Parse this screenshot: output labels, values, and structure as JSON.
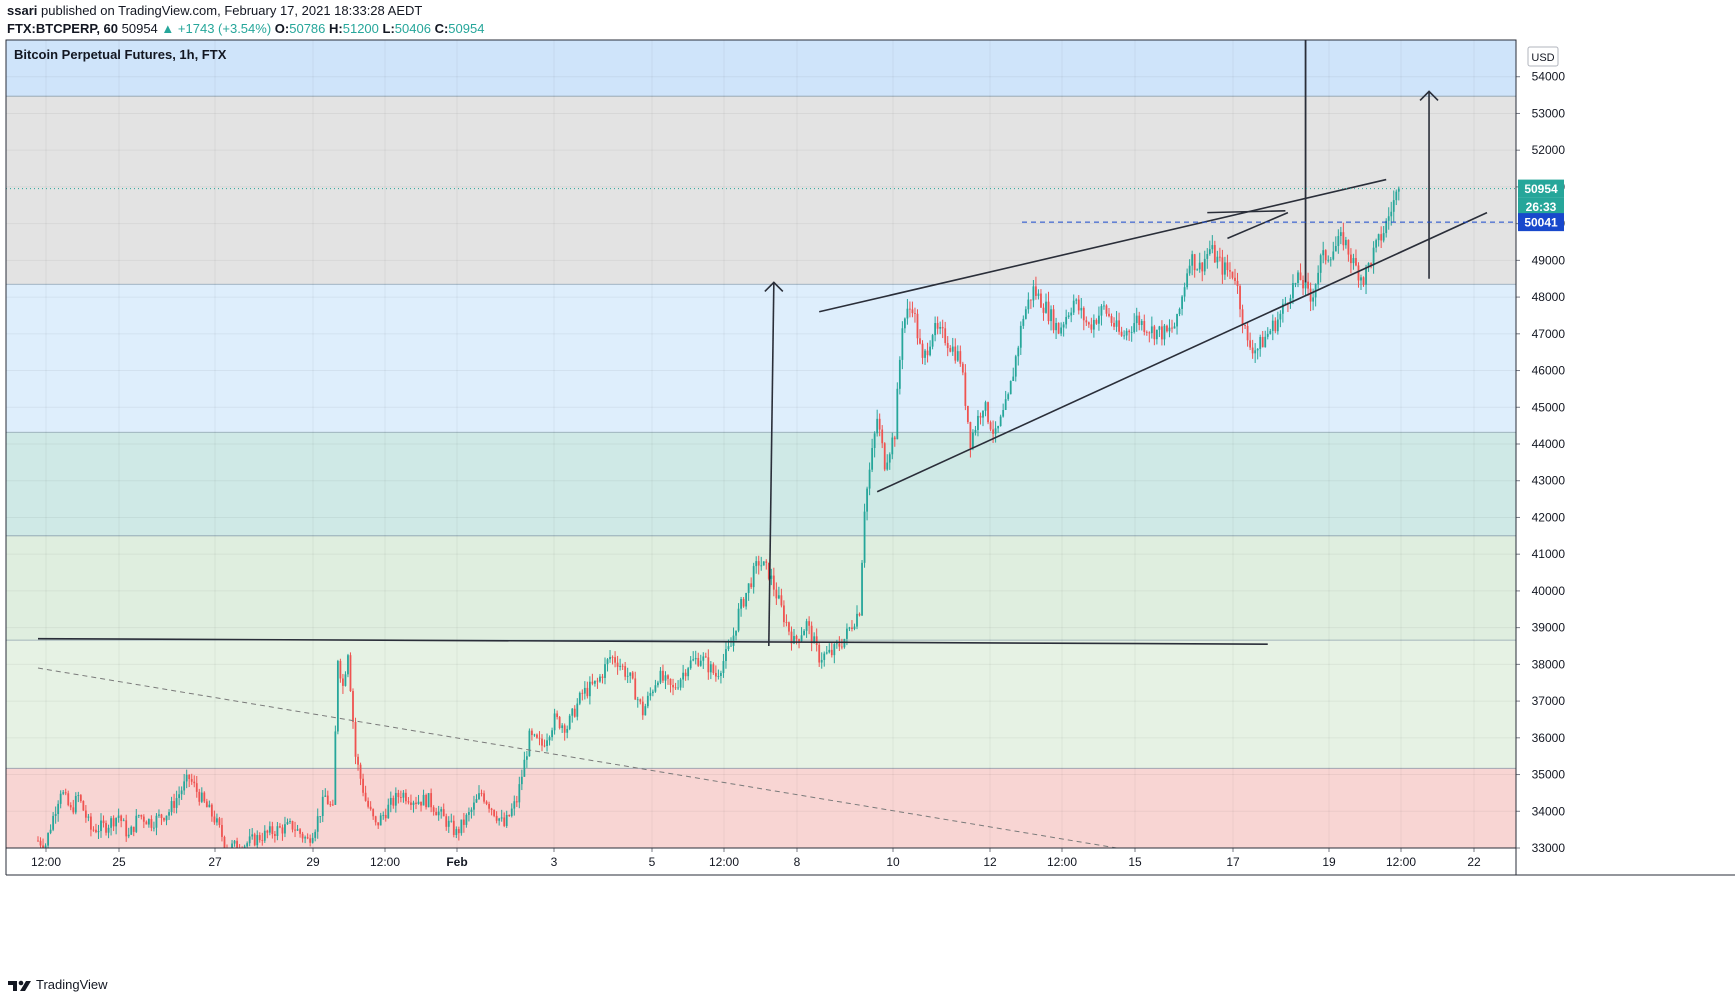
{
  "header": {
    "publisher": "ssari",
    "published_text": "published on TradingView.com, February 17, 2021 18:33:28 AEDT",
    "symbol": "FTX:BTCPERP, 60",
    "last": "50954",
    "change": "+1743 (+3.54%)",
    "o_label": "O:",
    "o": "50786",
    "h_label": "H:",
    "h": "51200",
    "l_label": "L:",
    "l": "50406",
    "c_label": "C:",
    "c": "50954"
  },
  "chart_title": "Bitcoin Perpetual Futures, 1h, FTX",
  "currency": "USD",
  "footer_brand": "TradingView",
  "colors": {
    "up": "#26a69a",
    "down": "#ef5350",
    "axis_text": "#131722",
    "price_label": "#26a69a",
    "level_label": "#1848cc"
  },
  "chart_data": {
    "type": "candlestick",
    "title": "Bitcoin Perpetual Futures, 1h, FTX",
    "ylabel": "USD",
    "ylim": [
      33000,
      55000
    ],
    "y_ticks": [
      33000,
      34000,
      35000,
      36000,
      37000,
      38000,
      39000,
      40000,
      41000,
      42000,
      43000,
      44000,
      45000,
      46000,
      47000,
      48000,
      49000,
      50000,
      51000,
      52000,
      53000,
      54000
    ],
    "x_ticks": [
      "12:00",
      "25",
      "27",
      "29",
      "12:00",
      "Feb",
      "3",
      "5",
      "12:00",
      "8",
      "10",
      "12",
      "12:00",
      "15",
      "17",
      "19",
      "12:00",
      "22"
    ],
    "last_price": 50954,
    "countdown": "26:33",
    "horizontal_level": 50041,
    "zones": [
      {
        "from": 53470,
        "to": 55000,
        "color": "#cfe4fa"
      },
      {
        "from": 48350,
        "to": 53470,
        "color": "#e3e3e3"
      },
      {
        "from": 44320,
        "to": 48350,
        "color": "#deeefc"
      },
      {
        "from": 41500,
        "to": 44320,
        "color": "#cfe9e6"
      },
      {
        "from": 38660,
        "to": 41500,
        "color": "#dfeedf"
      },
      {
        "from": 35170,
        "to": 38660,
        "color": "#e6f2e4"
      },
      {
        "from": 33000,
        "to": 35170,
        "color": "#f8d5d3"
      }
    ],
    "price_path": [
      [
        0,
        33200
      ],
      [
        3,
        33100
      ],
      [
        9,
        34600
      ],
      [
        13,
        34000
      ],
      [
        16,
        34400
      ],
      [
        21,
        33500
      ],
      [
        27,
        33600
      ],
      [
        32,
        33900
      ],
      [
        36,
        33300
      ],
      [
        40,
        33900
      ],
      [
        45,
        33700
      ],
      [
        52,
        34000
      ],
      [
        57,
        34600
      ],
      [
        60,
        34900
      ],
      [
        66,
        34200
      ],
      [
        70,
        33800
      ],
      [
        72,
        33500
      ],
      [
        75,
        33000
      ],
      [
        82,
        33100
      ],
      [
        88,
        33300
      ],
      [
        95,
        33500
      ],
      [
        101,
        33600
      ],
      [
        107,
        33200
      ],
      [
        110,
        33600
      ],
      [
        114,
        34400
      ],
      [
        117,
        34000
      ],
      [
        119,
        38200
      ],
      [
        121,
        37400
      ],
      [
        123,
        38400
      ],
      [
        126,
        35500
      ],
      [
        130,
        34300
      ],
      [
        134,
        33600
      ],
      [
        139,
        34100
      ],
      [
        144,
        34500
      ],
      [
        150,
        34300
      ],
      [
        155,
        34300
      ],
      [
        161,
        33800
      ],
      [
        166,
        33400
      ],
      [
        171,
        33900
      ],
      [
        176,
        34500
      ],
      [
        180,
        34100
      ],
      [
        185,
        33600
      ],
      [
        190,
        34300
      ],
      [
        195,
        36000
      ],
      [
        200,
        35800
      ],
      [
        205,
        36500
      ],
      [
        210,
        36300
      ],
      [
        216,
        37200
      ],
      [
        222,
        37500
      ],
      [
        227,
        38200
      ],
      [
        230,
        38100
      ],
      [
        235,
        37600
      ],
      [
        240,
        36700
      ],
      [
        246,
        37700
      ],
      [
        252,
        37300
      ],
      [
        258,
        38000
      ],
      [
        263,
        38200
      ],
      [
        269,
        37700
      ],
      [
        275,
        38500
      ],
      [
        278,
        39400
      ],
      [
        283,
        40300
      ],
      [
        286,
        40800
      ],
      [
        290,
        40500
      ],
      [
        296,
        39300
      ],
      [
        300,
        38600
      ],
      [
        305,
        39100
      ],
      [
        310,
        38200
      ],
      [
        315,
        38300
      ],
      [
        320,
        38700
      ],
      [
        326,
        39500
      ],
      [
        328,
        42300
      ],
      [
        333,
        44700
      ],
      [
        336,
        43500
      ],
      [
        340,
        44300
      ],
      [
        343,
        47300
      ],
      [
        347,
        47800
      ],
      [
        351,
        46200
      ],
      [
        355,
        47100
      ],
      [
        360,
        46900
      ],
      [
        366,
        46300
      ],
      [
        370,
        44100
      ],
      [
        375,
        45100
      ],
      [
        380,
        44200
      ],
      [
        385,
        45200
      ],
      [
        391,
        47500
      ],
      [
        395,
        48200
      ],
      [
        400,
        47700
      ],
      [
        405,
        47100
      ],
      [
        411,
        47900
      ],
      [
        417,
        47200
      ],
      [
        423,
        47700
      ],
      [
        430,
        46900
      ],
      [
        436,
        47400
      ],
      [
        442,
        47100
      ],
      [
        448,
        47000
      ],
      [
        452,
        47300
      ],
      [
        457,
        49100
      ],
      [
        461,
        48800
      ],
      [
        465,
        49300
      ],
      [
        470,
        48800
      ],
      [
        475,
        48600
      ],
      [
        480,
        46700
      ],
      [
        484,
        46600
      ],
      [
        488,
        47000
      ],
      [
        493,
        47500
      ],
      [
        497,
        48200
      ],
      [
        501,
        48500
      ],
      [
        505,
        47900
      ],
      [
        509,
        49000
      ],
      [
        514,
        49300
      ],
      [
        518,
        49600
      ],
      [
        522,
        48900
      ],
      [
        526,
        48500
      ],
      [
        530,
        49200
      ],
      [
        534,
        49800
      ],
      [
        537,
        50400
      ],
      [
        540,
        50954
      ]
    ],
    "drawings": [
      {
        "name": "support-line",
        "from": [
          0,
          38700
        ],
        "to": [
          488,
          38550
        ]
      },
      {
        "name": "upper-channel-line",
        "from": [
          310,
          47600
        ],
        "to": [
          535,
          51200
        ]
      },
      {
        "name": "lower-channel-line",
        "from": [
          333,
          42700
        ],
        "to": [
          575,
          50300
        ]
      },
      {
        "name": "breakout-line",
        "from": [
          464,
          50300
        ],
        "to": [
          495,
          50350
        ]
      },
      {
        "name": "mini-trendline",
        "from": [
          472,
          49600
        ],
        "to": [
          496,
          50300
        ]
      },
      {
        "name": "target-arrow-1",
        "from": [
          290,
          38500
        ],
        "to": [
          292,
          48400
        ]
      },
      {
        "name": "target-arrow-2",
        "from": [
          552,
          48500
        ],
        "to": [
          552,
          53600
        ]
      },
      {
        "name": "vertical-marker",
        "from": [
          503,
          55000
        ],
        "to": [
          503,
          48400
        ]
      },
      {
        "name": "dashed-trendline",
        "from": [
          0,
          37900
        ],
        "to": [
          428,
          33000
        ]
      }
    ]
  }
}
